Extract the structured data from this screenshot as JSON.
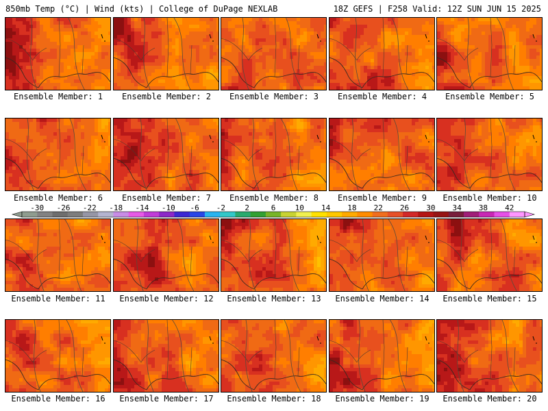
{
  "header": {
    "left": "850mb Temp (°C) | Wind (kts) | College of DuPage NEXLAB",
    "right": "18Z GEFS | F258 Valid: 12Z SUN JUN 15 2025"
  },
  "colorbar": {
    "labels": [
      "-30",
      "-26",
      "-22",
      "-18",
      "-14",
      "-10",
      "-6",
      "-2",
      "2",
      "6",
      "10",
      "14",
      "18",
      "22",
      "26",
      "30",
      "34",
      "38",
      "42"
    ],
    "colors": [
      "#8f9c8f",
      "#828282",
      "#6e6e6e",
      "#7d7d7d",
      "#9696a6",
      "#b4b4d0",
      "#c88ce6",
      "#e65ae6",
      "#c03cd8",
      "#8c28c8",
      "#3c28d2",
      "#2846e6",
      "#28b4f0",
      "#32c8c8",
      "#28aa6e",
      "#32a032",
      "#78b428",
      "#c8d232",
      "#f0f050",
      "#ffe100",
      "#ffc800",
      "#ffaa00",
      "#ff8c00",
      "#f06e1e",
      "#e65028",
      "#d22828",
      "#b41414",
      "#961414",
      "#781e3c",
      "#a01e78",
      "#c828b4",
      "#e650e6",
      "#ff96ff"
    ]
  },
  "members": [
    {
      "label": "Ensemble Member: 1",
      "heat": 0.82
    },
    {
      "label": "Ensemble Member: 2",
      "heat": 0.55
    },
    {
      "label": "Ensemble Member: 3",
      "heat": 0.6
    },
    {
      "label": "Ensemble Member: 4",
      "heat": 0.62
    },
    {
      "label": "Ensemble Member: 5",
      "heat": 0.65
    },
    {
      "label": "Ensemble Member: 6",
      "heat": 0.4
    },
    {
      "label": "Ensemble Member: 7",
      "heat": 0.5
    },
    {
      "label": "Ensemble Member: 8",
      "heat": 0.25
    },
    {
      "label": "Ensemble Member: 9",
      "heat": 0.48
    },
    {
      "label": "Ensemble Member: 10",
      "heat": 0.38
    },
    {
      "label": "Ensemble Member: 11",
      "heat": 0.3
    },
    {
      "label": "Ensemble Member: 12",
      "heat": 0.45
    },
    {
      "label": "Ensemble Member: 13",
      "heat": 0.7
    },
    {
      "label": "Ensemble Member: 14",
      "heat": 0.6
    },
    {
      "label": "Ensemble Member: 15",
      "heat": 0.5
    },
    {
      "label": "Ensemble Member: 16",
      "heat": 0.62
    },
    {
      "label": "Ensemble Member: 17",
      "heat": 0.78
    },
    {
      "label": "Ensemble Member: 18",
      "heat": 0.35
    },
    {
      "label": "Ensemble Member: 19",
      "heat": 0.5
    },
    {
      "label": "Ensemble Member: 20",
      "heat": 0.58
    }
  ]
}
